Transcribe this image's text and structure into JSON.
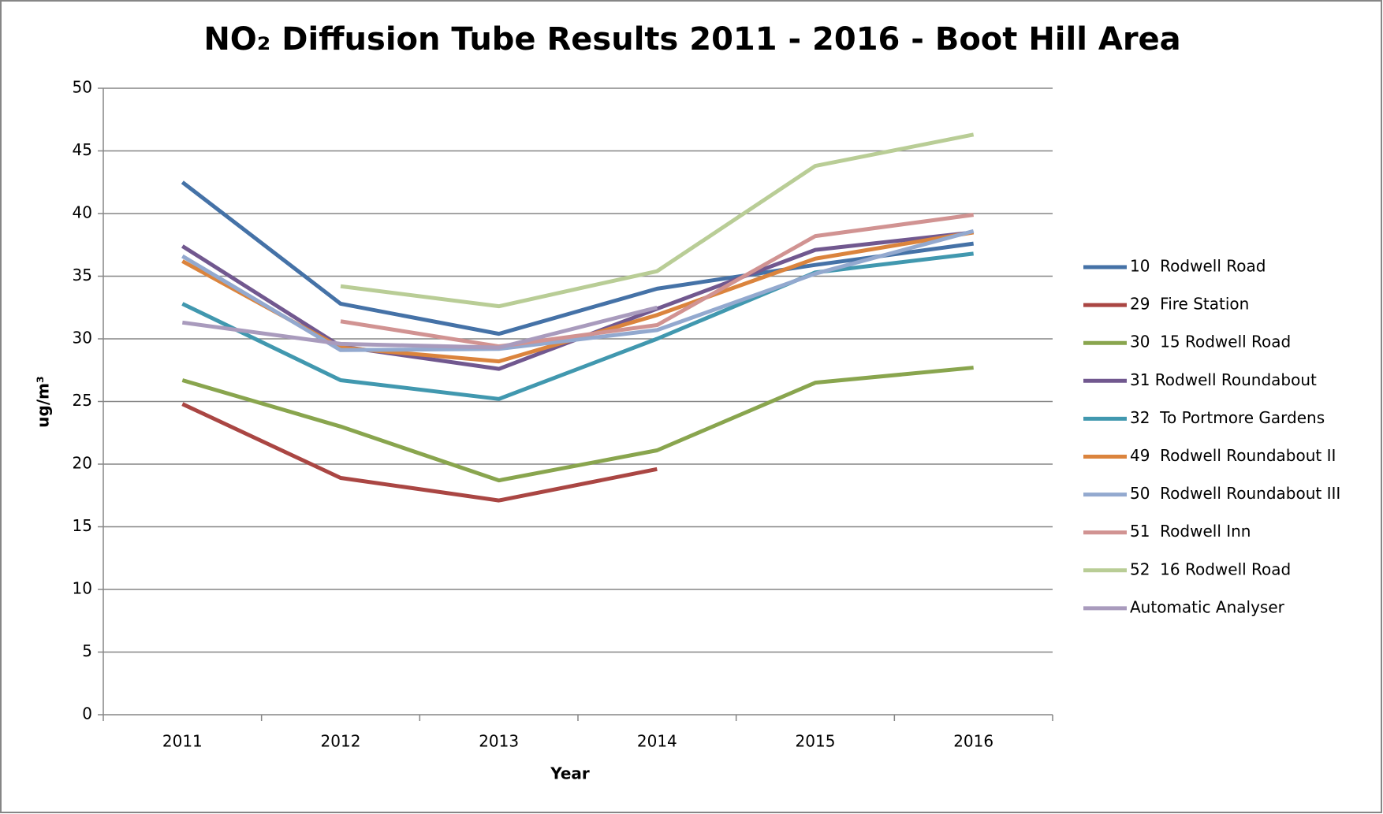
{
  "chart_data": {
    "type": "line",
    "title": "NO₂ Diffusion Tube Results 2011 - 2016 - Boot Hill Area",
    "x_label": "Year",
    "y_label": "ug/m³",
    "categories": [
      "2011",
      "2012",
      "2013",
      "2014",
      "2015",
      "2016"
    ],
    "ylim": [
      0,
      50
    ],
    "yticks": [
      0,
      5,
      10,
      15,
      20,
      25,
      30,
      35,
      40,
      45,
      50
    ],
    "grid": true,
    "legend": "right",
    "series": [
      {
        "name": "10  Rodwell Road",
        "color": "#4572a7",
        "values": [
          42.5,
          32.8,
          30.4,
          34.0,
          35.9,
          37.6
        ]
      },
      {
        "name": "29  Fire Station",
        "color": "#aa4643",
        "values": [
          24.8,
          18.9,
          17.1,
          19.6,
          null,
          null
        ]
      },
      {
        "name": "30  15 Rodwell Road",
        "color": "#89a54e",
        "values": [
          26.7,
          23.0,
          18.7,
          21.1,
          26.5,
          27.7
        ]
      },
      {
        "name": "31 Rodwell Roundabout",
        "color": "#71588f",
        "values": [
          37.4,
          29.4,
          27.6,
          32.4,
          37.1,
          38.5
        ]
      },
      {
        "name": "32  To Portmore Gardens",
        "color": "#4198af",
        "values": [
          32.8,
          26.7,
          25.2,
          30.0,
          35.3,
          36.8
        ]
      },
      {
        "name": "49  Rodwell Roundabout II",
        "color": "#db843d",
        "values": [
          36.2,
          29.3,
          28.2,
          31.9,
          36.4,
          38.5
        ]
      },
      {
        "name": "50  Rodwell Roundabout III",
        "color": "#93a9cf",
        "values": [
          36.6,
          29.1,
          29.2,
          30.7,
          35.2,
          38.6
        ]
      },
      {
        "name": "51  Rodwell Inn",
        "color": "#d19392",
        "values": [
          null,
          31.4,
          29.4,
          31.1,
          38.2,
          39.9
        ]
      },
      {
        "name": "52  16 Rodwell Road",
        "color": "#b9cd96",
        "values": [
          null,
          34.2,
          32.6,
          35.4,
          43.8,
          46.3
        ]
      },
      {
        "name": "Automatic Analyser",
        "color": "#a99bbd",
        "values": [
          31.3,
          29.6,
          29.3,
          32.5,
          null,
          null
        ]
      }
    ]
  }
}
